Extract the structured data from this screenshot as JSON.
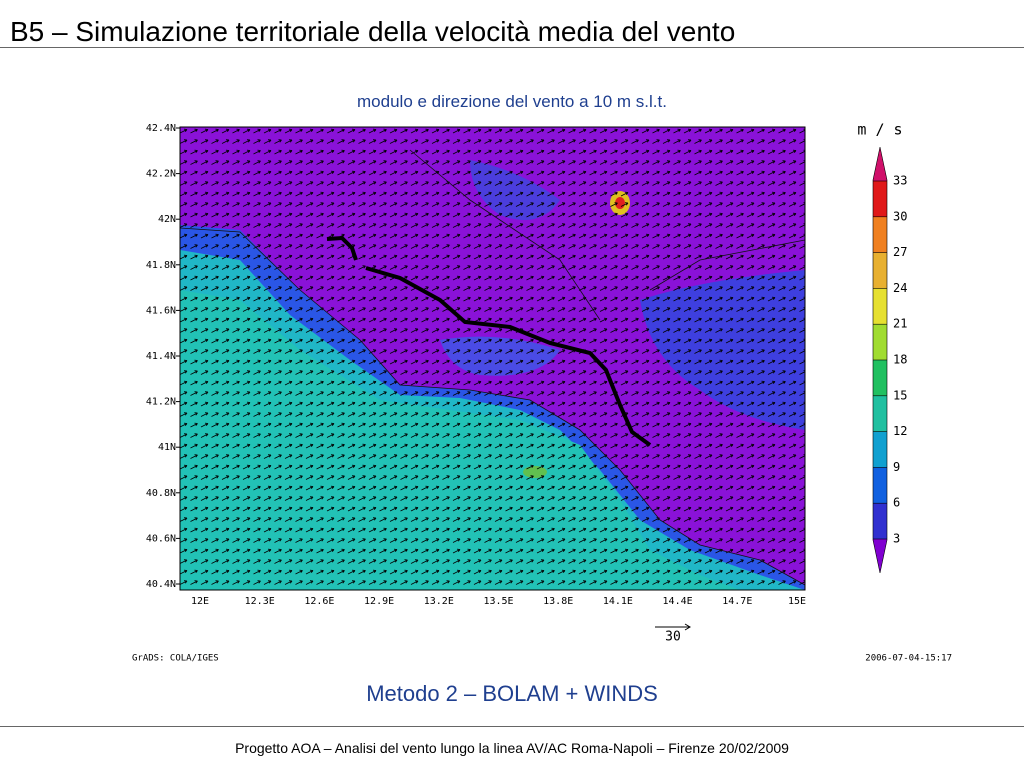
{
  "header": {
    "title": "B5 – Simulazione territoriale della velocità media del vento"
  },
  "figure": {
    "subtitle": "modulo e direzione del vento a 10 m s.l.t.",
    "y_labels": [
      "42.4N",
      "42.2N",
      "42N",
      "41.8N",
      "41.6N",
      "41.4N",
      "41.2N",
      "41N",
      "40.8N",
      "40.6N",
      "40.4N"
    ],
    "x_labels": [
      "12E",
      "12.3E",
      "12.6E",
      "12.9E",
      "13.2E",
      "13.5E",
      "13.8E",
      "14.1E",
      "14.4E",
      "14.7E",
      "15E"
    ],
    "colorbar": {
      "unit": "m / s",
      "labels": [
        "33",
        "30",
        "27",
        "24",
        "21",
        "18",
        "15",
        "12",
        "9",
        "6",
        "3"
      ]
    },
    "vector_scale": "30",
    "credit": "GrADS: COLA/IGES",
    "timestamp": "2006-07-04-15:17"
  },
  "caption": "Metodo 2 – BOLAM + WINDS",
  "footer": "Progetto AOA – Analisi del vento lungo la linea AV/AC Roma-Napoli – Firenze 20/02/2009"
}
